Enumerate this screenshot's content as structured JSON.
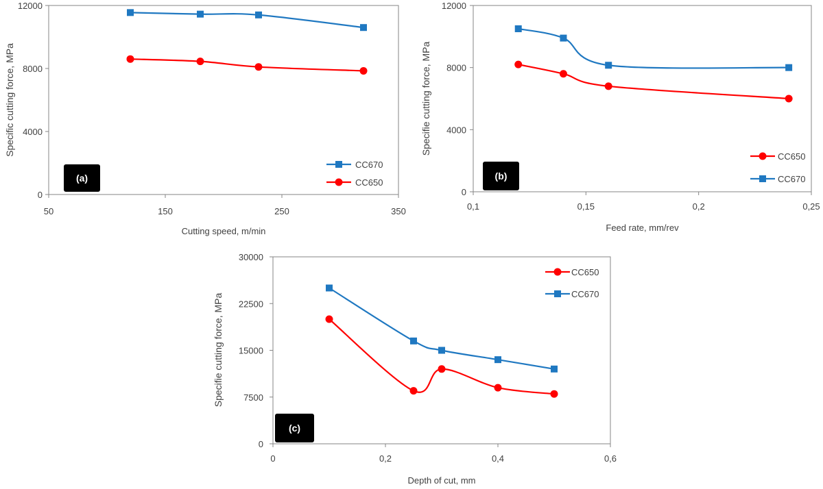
{
  "figure": {
    "colors": {
      "cc650": "#ff0000",
      "cc670": "#1f78c1",
      "axis": "#858585",
      "text": "#404040"
    }
  },
  "chart_data": [
    {
      "type": "line",
      "panel_label": "(a)",
      "xlabel": "Cutting speed, m/min",
      "ylabel": "Specific cutting force, MPa",
      "xlim": [
        50,
        350
      ],
      "ylim": [
        0,
        12000
      ],
      "xticks": [
        "50",
        "150",
        "250",
        "350"
      ],
      "yticks": [
        "0",
        "4000",
        "8000",
        "12000"
      ],
      "legend_position": "bottom-right",
      "series": [
        {
          "name": "CC670",
          "marker": "square",
          "x": [
            120,
            180,
            230,
            320
          ],
          "y": [
            11550,
            11450,
            11400,
            10600
          ]
        },
        {
          "name": "CC650",
          "marker": "circle",
          "x": [
            120,
            180,
            230,
            320
          ],
          "y": [
            8600,
            8450,
            8100,
            7850
          ]
        }
      ]
    },
    {
      "type": "line",
      "panel_label": "(b)",
      "xlabel": "Feed rate, mm/rev",
      "ylabel": "Specifie cutting force, MPa",
      "xlim": [
        0.1,
        0.25
      ],
      "ylim": [
        0,
        12000
      ],
      "xticks": [
        "0,1",
        "0,15",
        "0,2",
        "0,25"
      ],
      "yticks": [
        "0",
        "4000",
        "8000",
        "12000"
      ],
      "legend_position": "bottom-right",
      "series": [
        {
          "name": "CC650",
          "marker": "circle",
          "x": [
            0.12,
            0.14,
            0.16,
            0.24
          ],
          "y": [
            8200,
            7600,
            6800,
            6000
          ]
        },
        {
          "name": "CC670",
          "marker": "square",
          "x": [
            0.12,
            0.14,
            0.16,
            0.24
          ],
          "y": [
            10500,
            9900,
            8150,
            8000
          ]
        }
      ]
    },
    {
      "type": "line",
      "panel_label": "(c)",
      "xlabel": "Depth of cut, mm",
      "ylabel": "Specifie cutting force, MPa",
      "xlim": [
        0,
        0.6
      ],
      "ylim": [
        0,
        30000
      ],
      "xticks": [
        "0",
        "0,2",
        "0,4",
        "0,6"
      ],
      "yticks": [
        "0",
        "7500",
        "15000",
        "22500",
        "30000"
      ],
      "legend_position": "top-right",
      "series": [
        {
          "name": "CC650",
          "marker": "circle",
          "x": [
            0.1,
            0.25,
            0.3,
            0.4,
            0.5
          ],
          "y": [
            20000,
            8500,
            12000,
            9000,
            8000
          ]
        },
        {
          "name": "CC670",
          "marker": "square",
          "x": [
            0.1,
            0.25,
            0.3,
            0.4,
            0.5
          ],
          "y": [
            25000,
            16500,
            15000,
            13500,
            12000
          ]
        }
      ]
    }
  ]
}
